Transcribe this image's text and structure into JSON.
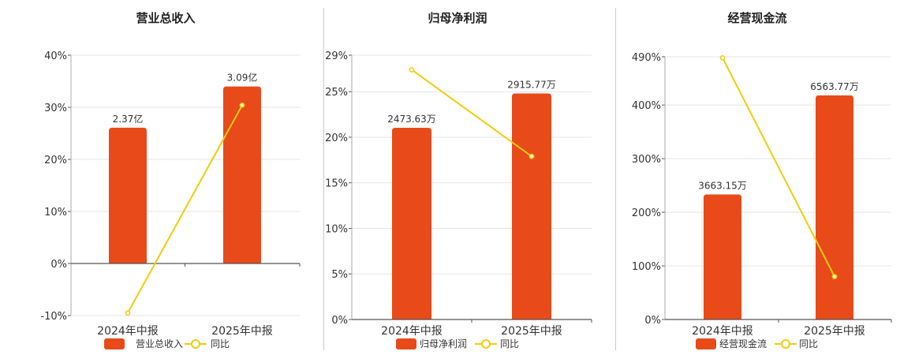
{
  "chart_data": [
    {
      "type": "bar",
      "title": "营业总收入",
      "categories": [
        "2024年中报",
        "2025年中报"
      ],
      "series": [
        {
          "name": "营业总收入",
          "values": [
            2.37,
            3.09
          ],
          "labels": [
            "2.37亿",
            "3.09亿"
          ],
          "axis": "none"
        },
        {
          "name": "同比",
          "type": "line",
          "values": [
            -9.5,
            30.4
          ],
          "axis": "left"
        }
      ],
      "ylim": [
        -10,
        40
      ],
      "yticks": [
        -10,
        0,
        10,
        20,
        30,
        40
      ],
      "ytick_labels": [
        "-10%",
        "0%",
        "10%",
        "20%",
        "30%",
        "40%"
      ],
      "grid": true,
      "legend": "bottom"
    },
    {
      "type": "bar",
      "title": "归母净利润",
      "categories": [
        "2024年中报",
        "2025年中报"
      ],
      "series": [
        {
          "name": "归母净利润",
          "values": [
            2473.63,
            2915.77
          ],
          "labels": [
            "2473.63万",
            "2915.77万"
          ],
          "axis": "none"
        },
        {
          "name": "同比",
          "type": "line",
          "values": [
            27.4,
            17.9
          ],
          "axis": "left"
        }
      ],
      "ylim": [
        0,
        29
      ],
      "yticks": [
        0,
        5,
        10,
        15,
        20,
        25,
        29
      ],
      "ytick_labels": [
        "0%",
        "5%",
        "10%",
        "15%",
        "20%",
        "25%",
        "29%"
      ],
      "grid": true,
      "legend": "bottom"
    },
    {
      "type": "bar",
      "title": "经营现金流",
      "categories": [
        "2024年中报",
        "2025年中报"
      ],
      "series": [
        {
          "name": "经营现金流",
          "values": [
            3663.15,
            6563.77
          ],
          "labels": [
            "3663.15万",
            "6563.77万"
          ],
          "axis": "none"
        },
        {
          "name": "同比",
          "type": "line",
          "values": [
            488,
            80
          ],
          "axis": "left"
        }
      ],
      "ylim": [
        0,
        490
      ],
      "yticks": [
        0,
        100,
        200,
        300,
        400,
        490
      ],
      "ytick_labels": [
        "0%",
        "100%",
        "200%",
        "300%",
        "400%",
        "490%"
      ],
      "grid": true,
      "legend": "bottom"
    }
  ],
  "colors": {
    "bar": "#e84a1a",
    "line": "#f2cc0c",
    "grid": "#e3e3ef",
    "axis": "#555555",
    "text": "#333333"
  }
}
